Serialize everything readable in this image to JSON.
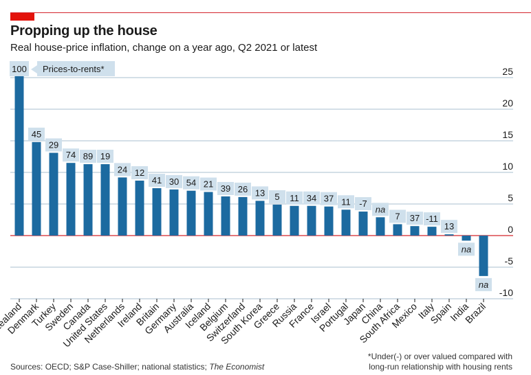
{
  "header": {
    "title": "Propping up the house",
    "subtitle": "Real house-price inflation, change on a year ago, Q2 2021 or latest"
  },
  "legend": {
    "first_value": "100",
    "label": "Prices-to-rents*"
  },
  "footer": {
    "sources_prefix": "Sources: OECD; S&P Case-Shiller; national statistics;",
    "sources_italic": "The Economist",
    "note_line1": "*Under(-) or over valued compared with",
    "note_line2": "long-run relationship with housing rents"
  },
  "colors": {
    "bar": "#1c6aa0",
    "annotation": "#cfe0ec",
    "accent": "#e3120b"
  },
  "chart_data": {
    "type": "bar",
    "title": "Propping up the house",
    "ylabel": "Real house-price inflation, % change on a year ago",
    "ylim": [
      -10,
      25
    ],
    "yticks": [
      25,
      20,
      15,
      10,
      5,
      0,
      -5,
      -10
    ],
    "categories": [
      "New Zealand",
      "Denmark",
      "Turkey",
      "Sweden",
      "Canada",
      "United States",
      "Netherlands",
      "Ireland",
      "Britain",
      "Germany",
      "Australia",
      "Iceland",
      "Belgium",
      "Switzerland",
      "South Korea",
      "Greece",
      "Russia",
      "France",
      "Israel",
      "Portugal",
      "Japan",
      "China",
      "South Africa",
      "Mexico",
      "Italy",
      "Spain",
      "India",
      "Brazil"
    ],
    "series": [
      {
        "name": "House-price inflation",
        "values": [
          26.0,
          14.8,
          13.1,
          11.5,
          11.3,
          11.3,
          9.2,
          8.7,
          7.5,
          7.3,
          7.1,
          6.9,
          6.2,
          6.1,
          5.5,
          4.9,
          4.7,
          4.7,
          4.6,
          4.1,
          3.8,
          2.9,
          1.8,
          1.5,
          1.4,
          0.2,
          -0.8,
          -6.4
        ]
      },
      {
        "name": "Prices-to-rents*",
        "values": [
          "100",
          "45",
          "29",
          "74",
          "89",
          "19",
          "24",
          "12",
          "41",
          "30",
          "54",
          "21",
          "39",
          "26",
          "13",
          "5",
          "11",
          "34",
          "37",
          "11",
          "-7",
          "na",
          "7",
          "37",
          "-11",
          "13",
          "na",
          "na"
        ]
      }
    ]
  }
}
